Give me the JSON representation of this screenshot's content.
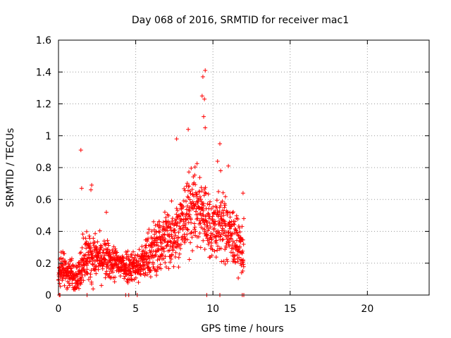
{
  "chart_data": {
    "type": "scatter",
    "title": "Day 068 of 2016, SRMTID for receiver mac1",
    "xlabel": "GPS time / hours",
    "ylabel": "SRMTID / TECUs",
    "xlim": [
      0,
      24
    ],
    "ylim": [
      0,
      1.6
    ],
    "xticks": [
      0,
      5,
      10,
      15,
      20
    ],
    "yticks": [
      0,
      0.2,
      0.4,
      0.6,
      0.8,
      1,
      1.2,
      1.4,
      1.6
    ],
    "xtick_labels": [
      "0",
      "5",
      "10",
      "15",
      "20"
    ],
    "ytick_labels": [
      "0",
      "0.2",
      "0.4",
      "0.6",
      "0.8",
      "1",
      "1.2",
      "1.4",
      "1.6"
    ],
    "grid": true,
    "marker": "+",
    "series_color": "#ff0000",
    "data_range_hours": [
      0,
      12
    ],
    "outliers": [
      {
        "x": 1.45,
        "y": 0.91
      },
      {
        "x": 1.5,
        "y": 0.67
      },
      {
        "x": 2.15,
        "y": 0.69
      },
      {
        "x": 2.1,
        "y": 0.66
      },
      {
        "x": 3.1,
        "y": 0.52
      },
      {
        "x": 7.65,
        "y": 0.98
      },
      {
        "x": 8.4,
        "y": 1.04
      },
      {
        "x": 9.5,
        "y": 1.41
      },
      {
        "x": 9.35,
        "y": 1.37
      },
      {
        "x": 9.3,
        "y": 1.25
      },
      {
        "x": 9.45,
        "y": 1.23
      },
      {
        "x": 9.4,
        "y": 1.12
      },
      {
        "x": 9.5,
        "y": 1.05
      },
      {
        "x": 10.45,
        "y": 0.95
      },
      {
        "x": 10.3,
        "y": 0.84
      },
      {
        "x": 10.5,
        "y": 0.78
      },
      {
        "x": 11.0,
        "y": 0.81
      },
      {
        "x": 11.95,
        "y": 0.64
      },
      {
        "x": 12.0,
        "y": 0.48
      }
    ],
    "zero_points": [
      0.05,
      0.1,
      1.85,
      4.35,
      4.55,
      5.1,
      9.6,
      10.45,
      11.9,
      12.0
    ]
  }
}
